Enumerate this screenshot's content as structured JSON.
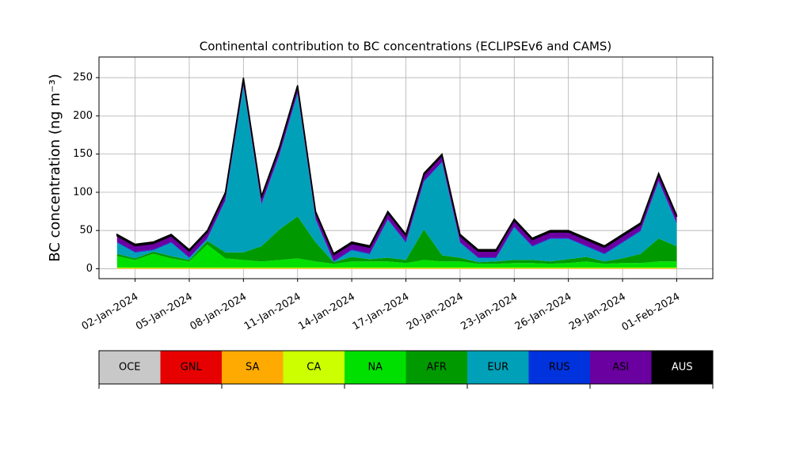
{
  "chart_data": {
    "type": "stacked_area",
    "title": "Continental contribution to BC concentrations (ECLIPSEv6 and CAMS)",
    "y_label": "BC concentration (ng m⁻³)",
    "x": [
      "2024-01-01",
      "2024-01-02",
      "2024-01-03",
      "2024-01-04",
      "2024-01-05",
      "2024-01-06",
      "2024-01-07",
      "2024-01-08",
      "2024-01-09",
      "2024-01-10",
      "2024-01-11",
      "2024-01-12",
      "2024-01-13",
      "2024-01-14",
      "2024-01-15",
      "2024-01-16",
      "2024-01-17",
      "2024-01-18",
      "2024-01-19",
      "2024-01-20",
      "2024-01-21",
      "2024-01-22",
      "2024-01-23",
      "2024-01-24",
      "2024-01-25",
      "2024-01-26",
      "2024-01-27",
      "2024-01-28",
      "2024-01-29",
      "2024-01-30",
      "2024-01-31",
      "2024-02-01"
    ],
    "series": [
      {
        "name": "OCE",
        "color": "#c8c8c8",
        "values": [
          0,
          0,
          0,
          0,
          0,
          0,
          0,
          0,
          0,
          0,
          0,
          0,
          0,
          0,
          0,
          0,
          0,
          0,
          0,
          0,
          0,
          0,
          0,
          0,
          0,
          0,
          0,
          0,
          0,
          0,
          0,
          0
        ]
      },
      {
        "name": "GNL",
        "color": "#e60000",
        "values": [
          0,
          0,
          0,
          0,
          0,
          0,
          0,
          0,
          0,
          0,
          0,
          0,
          0,
          0,
          0,
          0,
          0,
          0,
          0,
          0,
          0,
          0,
          0,
          0,
          0,
          0,
          0,
          0,
          0,
          0,
          0,
          0
        ]
      },
      {
        "name": "SA",
        "color": "#ffaa00",
        "values": [
          0.5,
          0.5,
          0.5,
          0.5,
          0.5,
          0.5,
          0.5,
          0.5,
          0.5,
          0.5,
          0.5,
          0.5,
          0.5,
          0.5,
          0.5,
          0.5,
          0.5,
          0.5,
          0.5,
          0.5,
          0.5,
          0.5,
          0.5,
          0.5,
          0.5,
          0.5,
          0.5,
          0.5,
          0.5,
          0.5,
          0.5,
          0.5
        ]
      },
      {
        "name": "CA",
        "color": "#ccff00",
        "values": [
          1,
          1,
          1,
          1,
          1,
          1,
          1,
          1,
          1,
          1,
          1,
          1,
          1,
          1,
          1,
          1,
          1,
          1,
          1,
          1,
          1,
          1,
          1,
          1,
          1,
          1,
          1,
          1,
          1,
          1,
          1,
          1
        ]
      },
      {
        "name": "NA",
        "color": "#00e000",
        "values": [
          15,
          10,
          18,
          12,
          8,
          30,
          12,
          10,
          8,
          10,
          12,
          8,
          5,
          8,
          8,
          8,
          6,
          10,
          8,
          8,
          5,
          5,
          6,
          6,
          5,
          6,
          8,
          5,
          6,
          6,
          8,
          8
        ]
      },
      {
        "name": "AFR",
        "color": "#009a00",
        "values": [
          3,
          2,
          3,
          3,
          2,
          5,
          8,
          10,
          20,
          40,
          55,
          25,
          2,
          6,
          3,
          5,
          4,
          40,
          8,
          5,
          2,
          3,
          4,
          4,
          3,
          5,
          6,
          3,
          6,
          12,
          30,
          20
        ]
      },
      {
        "name": "EUR",
        "color": "#00a0b8",
        "values": [
          14.5,
          7.5,
          1.5,
          17.5,
          2.5,
          2.5,
          67.5,
          217.5,
          54.5,
          97.5,
          160.5,
          29.5,
          0.5,
          8.5,
          6.5,
          49.5,
          22.5,
          62.5,
          121.5,
          19.5,
          5.5,
          4.5,
          42.5,
          17.5,
          29.5,
          26.5,
          13.5,
          9.5,
          20.5,
          29.5,
          74.5,
          29.5
        ]
      },
      {
        "name": "RUS",
        "color": "#0033dd",
        "values": [
          1,
          1,
          1,
          1,
          1,
          1,
          1,
          1,
          1,
          1,
          1,
          1,
          1,
          1,
          1,
          1,
          1,
          1,
          1,
          1,
          1,
          1,
          1,
          1,
          1,
          1,
          1,
          1,
          1,
          1,
          1,
          1
        ]
      },
      {
        "name": "ASI",
        "color": "#6a00a0",
        "values": [
          8,
          8,
          8,
          8,
          8,
          8,
          8,
          8,
          8,
          8,
          8,
          8,
          8,
          8,
          8,
          8,
          8,
          8,
          8,
          8,
          8,
          8,
          8,
          8,
          8,
          8,
          8,
          8,
          8,
          8,
          8,
          8
        ]
      },
      {
        "name": "AUS",
        "color": "#000000",
        "values": [
          2,
          2,
          2,
          2,
          2,
          2,
          2,
          2,
          2,
          2,
          2,
          2,
          2,
          2,
          2,
          2,
          2,
          2,
          2,
          2,
          2,
          2,
          2,
          2,
          2,
          2,
          2,
          2,
          2,
          2,
          2,
          2
        ]
      }
    ],
    "xlim": [
      "2023-12-31",
      "2024-02-03"
    ],
    "xticks": [
      {
        "value": "2024-01-02",
        "label": "02-Jan-2024"
      },
      {
        "value": "2024-01-05",
        "label": "05-Jan-2024"
      },
      {
        "value": "2024-01-08",
        "label": "08-Jan-2024"
      },
      {
        "value": "2024-01-11",
        "label": "11-Jan-2024"
      },
      {
        "value": "2024-01-14",
        "label": "14-Jan-2024"
      },
      {
        "value": "2024-01-17",
        "label": "17-Jan-2024"
      },
      {
        "value": "2024-01-20",
        "label": "20-Jan-2024"
      },
      {
        "value": "2024-01-23",
        "label": "23-Jan-2024"
      },
      {
        "value": "2024-01-26",
        "label": "26-Jan-2024"
      },
      {
        "value": "2024-01-29",
        "label": "29-Jan-2024"
      },
      {
        "value": "2024-02-01",
        "label": "01-Feb-2024"
      }
    ],
    "ylim": [
      -13,
      277
    ],
    "yticks": [
      0,
      50,
      100,
      150,
      200,
      250
    ],
    "grid": true
  }
}
